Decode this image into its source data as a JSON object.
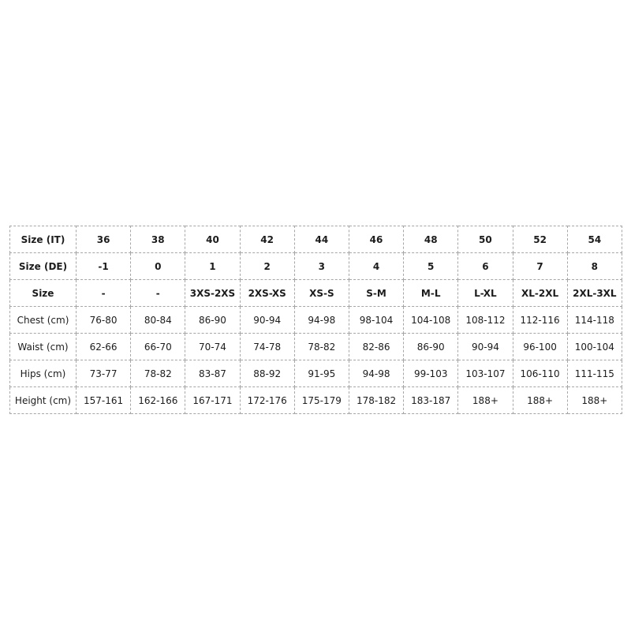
{
  "colors": {
    "background": "#ffffff",
    "table_border": "#a6a6a6",
    "text": "#1c1c1c"
  },
  "chart_data": {
    "type": "table",
    "title": "",
    "row_labels": [
      "Size (IT)",
      "Size (DE)",
      "Size",
      "Chest (cm)",
      "Waist (cm)",
      "Hips (cm)",
      "Height (cm)"
    ],
    "bold_rows": [
      0,
      1,
      2
    ],
    "cells": [
      [
        "36",
        "38",
        "40",
        "42",
        "44",
        "46",
        "48",
        "50",
        "52",
        "54"
      ],
      [
        "-1",
        "0",
        "1",
        "2",
        "3",
        "4",
        "5",
        "6",
        "7",
        "8"
      ],
      [
        "-",
        "-",
        "3XS-2XS",
        "2XS-XS",
        "XS-S",
        "S-M",
        "M-L",
        "L-XL",
        "XL-2XL",
        "2XL-3XL"
      ],
      [
        "76-80",
        "80-84",
        "86-90",
        "90-94",
        "94-98",
        "98-104",
        "104-108",
        "108-112",
        "112-116",
        "114-118"
      ],
      [
        "62-66",
        "66-70",
        "70-74",
        "74-78",
        "78-82",
        "82-86",
        "86-90",
        "90-94",
        "96-100",
        "100-104"
      ],
      [
        "73-77",
        "78-82",
        "83-87",
        "88-92",
        "91-95",
        "94-98",
        "99-103",
        "103-107",
        "106-110",
        "111-115"
      ],
      [
        "157-161",
        "162-166",
        "167-171",
        "172-176",
        "175-179",
        "178-182",
        "183-187",
        "188+",
        "188+",
        "188+"
      ]
    ]
  }
}
